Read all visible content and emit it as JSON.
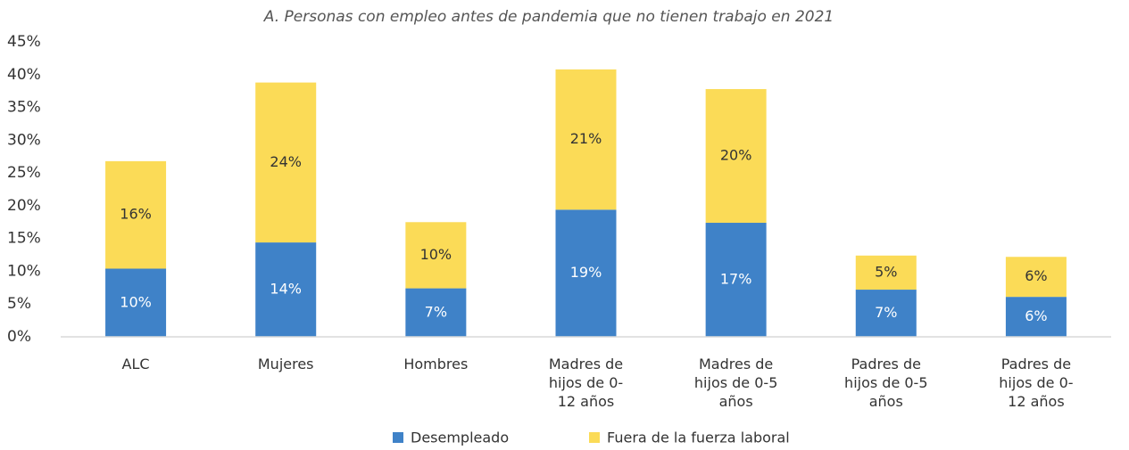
{
  "chart_data": {
    "type": "stacked_bar",
    "title": "A. Personas con empleo antes de pandemia que no tienen trabajo en 2021",
    "categories": [
      "ALC",
      "Mujeres",
      "Hombres",
      "Madres de hijos de 0-12 años",
      "Madres de hijos de 0-5 años",
      "Padres de hijos de 0-5 años",
      "Padres de hijos de 0-12 años"
    ],
    "series": [
      {
        "name": "Desempleado",
        "color": "#3f82c8",
        "values": [
          10.4,
          14.4,
          7.4,
          19.4,
          17.4,
          7.2,
          6.1
        ],
        "value_labels": [
          "10%",
          "14%",
          "7%",
          "19%",
          "17%",
          "7%",
          "6%"
        ]
      },
      {
        "name": "Fuera de la fuerza laboral",
        "color": "#fbdb57",
        "values": [
          16.4,
          24.4,
          10.1,
          21.4,
          20.4,
          5.2,
          6.1
        ],
        "value_labels": [
          "16%",
          "24%",
          "10%",
          "21%",
          "20%",
          "5%",
          "6%"
        ]
      }
    ],
    "ylim": [
      0,
      45
    ],
    "yticks": [
      {
        "value": 0,
        "label": "0%"
      },
      {
        "value": 5,
        "label": "5%"
      },
      {
        "value": 10,
        "label": "10%"
      },
      {
        "value": 15,
        "label": "15%"
      },
      {
        "value": 20,
        "label": "20%"
      },
      {
        "value": 25,
        "label": "25%"
      },
      {
        "value": 30,
        "label": "30%"
      },
      {
        "value": 35,
        "label": "35%"
      },
      {
        "value": 40,
        "label": "40%"
      },
      {
        "value": 45,
        "label": "45%"
      }
    ],
    "grid": false,
    "legend": "bottom"
  }
}
